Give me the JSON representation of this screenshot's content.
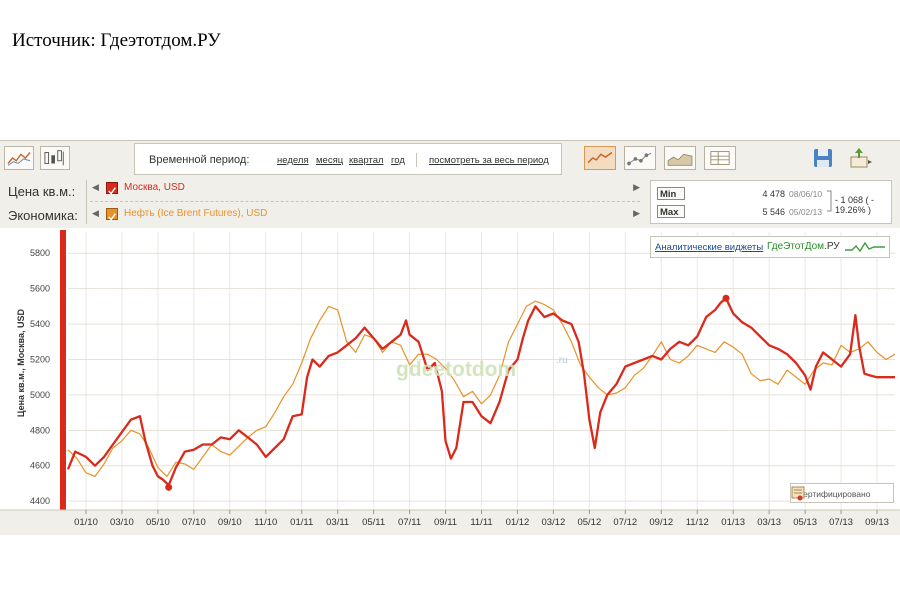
{
  "source_caption": "Источник: Гдеэтотдом.РУ",
  "toolbar": {
    "period_label": "Временной период:",
    "period_links": [
      "неделя",
      "месяц",
      "квартал",
      "год"
    ],
    "all_period_link": "посмотреть за весь период",
    "left_icons": [
      "compare-chart-icon",
      "candle-chart-icon"
    ],
    "type_icons": [
      "line-chart-icon",
      "scatter-chart-icon",
      "area-chart-icon",
      "table-view-icon"
    ],
    "right_icons": [
      "save-icon",
      "export-icon"
    ]
  },
  "legend": {
    "row1_label": "Цена кв.м.:",
    "row2_label": "Экономика:",
    "series1": "Москва, USD",
    "series2": "Нефть  (Ice Brent Futures), USD",
    "series1_color": "#d92a1c",
    "series2_color": "#e8922a"
  },
  "minmax": {
    "min_tag": "Min",
    "max_tag": "Max",
    "min_value": "4 478",
    "min_date": "08/06/10",
    "max_value": "5 546",
    "max_date": "05/02/13",
    "diff": "- 1 068  ( - 19.26% )"
  },
  "widgets": {
    "link": "Аналитические виджеты",
    "brand_a": "ГдеЭтотДом",
    "brand_b": ".РУ"
  },
  "certified": "Сертифицировано",
  "watermark": "gdeetotdom",
  "watermark_ru": ".ru",
  "chart_data": {
    "type": "line",
    "ylabel": "Цена кв.м., Москва, USD",
    "ylim": [
      4350,
      5920
    ],
    "yticks": [
      4400,
      4600,
      4800,
      5000,
      5200,
      5400,
      5600,
      5800
    ],
    "xlim": [
      0,
      46
    ],
    "xticks": [
      1,
      3,
      5,
      7,
      9,
      11,
      13,
      15,
      17,
      19,
      21,
      23,
      25,
      27,
      29,
      31,
      33,
      35,
      37,
      39,
      41,
      43,
      45
    ],
    "xtick_labels": [
      "01/10",
      "03/10",
      "05/10",
      "07/10",
      "09/10",
      "11/10",
      "01/11",
      "03/11",
      "05/11",
      "07/11",
      "09/11",
      "11/11",
      "01/12",
      "03/12",
      "05/12",
      "07/12",
      "09/12",
      "11/12",
      "01/13",
      "03/13",
      "05/13",
      "07/13",
      "09/13"
    ],
    "series": [
      {
        "name": "Москва, USD",
        "color": "#d92a1c",
        "width": 2.3,
        "points": [
          [
            0,
            4580
          ],
          [
            0.4,
            4680
          ],
          [
            1,
            4650
          ],
          [
            1.5,
            4600
          ],
          [
            2,
            4650
          ],
          [
            2.5,
            4720
          ],
          [
            3,
            4790
          ],
          [
            3.5,
            4860
          ],
          [
            4,
            4880
          ],
          [
            4.3,
            4740
          ],
          [
            4.7,
            4600
          ],
          [
            5,
            4540
          ],
          [
            5.3,
            4520
          ],
          [
            5.6,
            4490
          ],
          [
            6,
            4590
          ],
          [
            6.5,
            4680
          ],
          [
            7,
            4690
          ],
          [
            7.5,
            4720
          ],
          [
            8,
            4720
          ],
          [
            8.5,
            4760
          ],
          [
            9,
            4750
          ],
          [
            9.5,
            4800
          ],
          [
            10,
            4760
          ],
          [
            10.5,
            4720
          ],
          [
            11,
            4650
          ],
          [
            11.5,
            4700
          ],
          [
            12,
            4750
          ],
          [
            12.5,
            4880
          ],
          [
            13,
            4890
          ],
          [
            13.3,
            5100
          ],
          [
            13.6,
            5200
          ],
          [
            14,
            5160
          ],
          [
            14.5,
            5220
          ],
          [
            15,
            5240
          ],
          [
            15.5,
            5280
          ],
          [
            16,
            5320
          ],
          [
            16.5,
            5380
          ],
          [
            17,
            5320
          ],
          [
            17.5,
            5260
          ],
          [
            18,
            5300
          ],
          [
            18.5,
            5340
          ],
          [
            18.8,
            5420
          ],
          [
            19,
            5340
          ],
          [
            19.5,
            5300
          ],
          [
            20,
            5140
          ],
          [
            20.4,
            5180
          ],
          [
            20.8,
            5020
          ],
          [
            21,
            4740
          ],
          [
            21.3,
            4640
          ],
          [
            21.6,
            4700
          ],
          [
            22,
            4960
          ],
          [
            22.5,
            4960
          ],
          [
            23,
            4880
          ],
          [
            23.5,
            4840
          ],
          [
            24,
            4960
          ],
          [
            24.5,
            5140
          ],
          [
            25,
            5200
          ],
          [
            25.3,
            5320
          ],
          [
            25.6,
            5420
          ],
          [
            26,
            5500
          ],
          [
            26.5,
            5440
          ],
          [
            27,
            5460
          ],
          [
            27.5,
            5420
          ],
          [
            28,
            5400
          ],
          [
            28.4,
            5300
          ],
          [
            28.7,
            5120
          ],
          [
            29,
            4860
          ],
          [
            29.3,
            4700
          ],
          [
            29.6,
            4900
          ],
          [
            30,
            5000
          ],
          [
            30.5,
            5060
          ],
          [
            31,
            5160
          ],
          [
            31.5,
            5180
          ],
          [
            32,
            5200
          ],
          [
            32.5,
            5220
          ],
          [
            33,
            5200
          ],
          [
            33.5,
            5260
          ],
          [
            34,
            5300
          ],
          [
            34.5,
            5280
          ],
          [
            35,
            5330
          ],
          [
            35.5,
            5440
          ],
          [
            36,
            5480
          ],
          [
            36.3,
            5520
          ],
          [
            36.6,
            5546
          ],
          [
            37,
            5460
          ],
          [
            37.5,
            5410
          ],
          [
            38,
            5380
          ],
          [
            38.5,
            5330
          ],
          [
            39,
            5280
          ],
          [
            39.5,
            5260
          ],
          [
            40,
            5230
          ],
          [
            40.5,
            5180
          ],
          [
            41,
            5110
          ],
          [
            41.3,
            5030
          ],
          [
            41.6,
            5160
          ],
          [
            42,
            5240
          ],
          [
            42.5,
            5200
          ],
          [
            43,
            5160
          ],
          [
            43.5,
            5230
          ],
          [
            43.8,
            5450
          ],
          [
            44,
            5280
          ],
          [
            44.3,
            5120
          ],
          [
            44.6,
            5110
          ],
          [
            45,
            5100
          ],
          [
            45.5,
            5100
          ],
          [
            46,
            5100
          ]
        ]
      },
      {
        "name": "Нефть  (Ice Brent Futures), USD",
        "color": "#e8922a",
        "width": 1.2,
        "points": [
          [
            0,
            4690
          ],
          [
            0.5,
            4640
          ],
          [
            1,
            4560
          ],
          [
            1.5,
            4540
          ],
          [
            2,
            4610
          ],
          [
            2.5,
            4700
          ],
          [
            3,
            4740
          ],
          [
            3.5,
            4800
          ],
          [
            4,
            4780
          ],
          [
            4.5,
            4700
          ],
          [
            5,
            4590
          ],
          [
            5.5,
            4540
          ],
          [
            6,
            4620
          ],
          [
            6.5,
            4610
          ],
          [
            7,
            4580
          ],
          [
            7.5,
            4650
          ],
          [
            8,
            4720
          ],
          [
            8.5,
            4680
          ],
          [
            9,
            4660
          ],
          [
            9.5,
            4710
          ],
          [
            10,
            4760
          ],
          [
            10.5,
            4800
          ],
          [
            11,
            4820
          ],
          [
            11.5,
            4900
          ],
          [
            12,
            4990
          ],
          [
            12.5,
            5060
          ],
          [
            13,
            5180
          ],
          [
            13.5,
            5320
          ],
          [
            14,
            5420
          ],
          [
            14.5,
            5500
          ],
          [
            15,
            5480
          ],
          [
            15.5,
            5300
          ],
          [
            16,
            5240
          ],
          [
            16.5,
            5340
          ],
          [
            17,
            5320
          ],
          [
            17.5,
            5240
          ],
          [
            18,
            5300
          ],
          [
            18.5,
            5280
          ],
          [
            19,
            5170
          ],
          [
            19.5,
            5230
          ],
          [
            20,
            5230
          ],
          [
            20.5,
            5200
          ],
          [
            21,
            5150
          ],
          [
            21.5,
            5080
          ],
          [
            22,
            4990
          ],
          [
            22.5,
            5020
          ],
          [
            23,
            4950
          ],
          [
            23.5,
            5000
          ],
          [
            24,
            5110
          ],
          [
            24.5,
            5300
          ],
          [
            25,
            5400
          ],
          [
            25.5,
            5500
          ],
          [
            26,
            5530
          ],
          [
            26.5,
            5510
          ],
          [
            27,
            5480
          ],
          [
            27.5,
            5400
          ],
          [
            28,
            5300
          ],
          [
            28.5,
            5170
          ],
          [
            29,
            5100
          ],
          [
            29.5,
            5040
          ],
          [
            30,
            5000
          ],
          [
            30.5,
            5010
          ],
          [
            31,
            5040
          ],
          [
            31.5,
            5110
          ],
          [
            32,
            5150
          ],
          [
            32.5,
            5220
          ],
          [
            33,
            5300
          ],
          [
            33.5,
            5200
          ],
          [
            34,
            5180
          ],
          [
            34.5,
            5220
          ],
          [
            35,
            5280
          ],
          [
            35.5,
            5260
          ],
          [
            36,
            5240
          ],
          [
            36.5,
            5300
          ],
          [
            37,
            5270
          ],
          [
            37.5,
            5230
          ],
          [
            38,
            5120
          ],
          [
            38.5,
            5080
          ],
          [
            39,
            5090
          ],
          [
            39.5,
            5060
          ],
          [
            40,
            5140
          ],
          [
            40.5,
            5100
          ],
          [
            41,
            5060
          ],
          [
            41.5,
            5140
          ],
          [
            42,
            5180
          ],
          [
            42.5,
            5170
          ],
          [
            43,
            5280
          ],
          [
            43.5,
            5240
          ],
          [
            44,
            5260
          ],
          [
            44.5,
            5300
          ],
          [
            45,
            5240
          ],
          [
            45.5,
            5200
          ],
          [
            46,
            5230
          ]
        ]
      }
    ],
    "markers": [
      {
        "series": "Москва, USD",
        "x": 5.6,
        "y": 4478,
        "label": "min"
      },
      {
        "series": "Москва, USD",
        "x": 36.6,
        "y": 5546,
        "label": "max"
      }
    ]
  }
}
